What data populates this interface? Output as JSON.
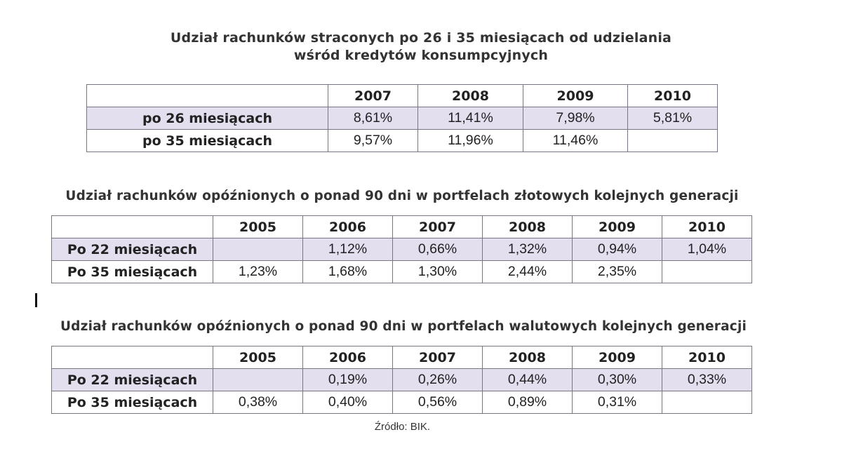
{
  "table1": {
    "title_line1": "Udział rachunków straconych po 26 i 35 miesiącach od udzielania",
    "title_line2": "wśród kredytów konsumpcyjnych",
    "headers": [
      "",
      "2007",
      "2008",
      "2009",
      "2010"
    ],
    "rows": [
      {
        "label": "po 26 miesiącach",
        "values": [
          "8,61%",
          "11,41%",
          "7,98%",
          "5,81%"
        ]
      },
      {
        "label": "po 35 miesiącach",
        "values": [
          "9,57%",
          "11,96%",
          "11,46%",
          ""
        ]
      }
    ]
  },
  "table2": {
    "title": "Udział rachunków opóźnionych o ponad 90 dni w portfelach złotowych kolejnych generacji",
    "headers": [
      "",
      "2005",
      "2006",
      "2007",
      "2008",
      "2009",
      "2010"
    ],
    "rows": [
      {
        "label": "Po 22 miesiącach",
        "values": [
          "",
          "1,12%",
          "0,66%",
          "1,32%",
          "0,94%",
          "1,04%"
        ]
      },
      {
        "label": "Po 35 miesiącach",
        "values": [
          "1,23%",
          "1,68%",
          "1,30%",
          "2,44%",
          "2,35%",
          ""
        ]
      }
    ]
  },
  "table3": {
    "title": "Udział rachunków opóźnionych o ponad 90 dni w portfelach walutowych kolejnych generacji",
    "headers": [
      "",
      "2005",
      "2006",
      "2007",
      "2008",
      "2009",
      "2010"
    ],
    "rows": [
      {
        "label": "Po 22 miesiącach",
        "values": [
          "",
          "0,19%",
          "0,26%",
          "0,44%",
          "0,30%",
          "0,33%"
        ]
      },
      {
        "label": "Po 35 miesiącach",
        "values": [
          "0,38%",
          "0,40%",
          "0,56%",
          "0,89%",
          "0,31%",
          ""
        ]
      }
    ]
  },
  "source": "Źródło: BIK.",
  "colors": {
    "shade_row": "#e3dfee",
    "border": "#7a7380"
  }
}
